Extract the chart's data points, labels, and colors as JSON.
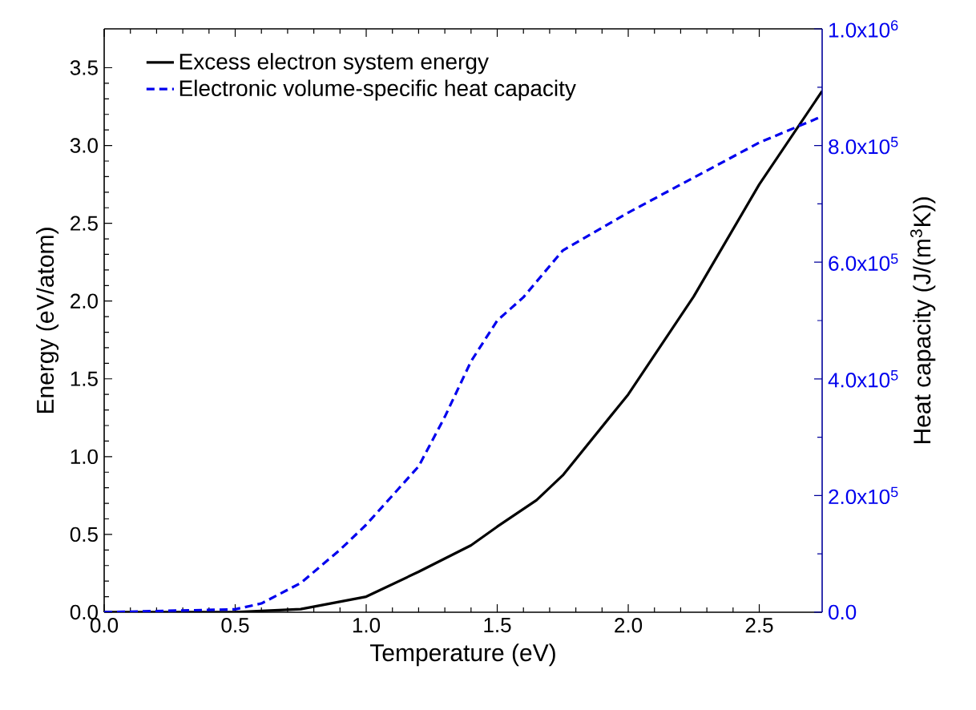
{
  "chart_data": {
    "type": "line",
    "xlabel": "Temperature (eV)",
    "ylabel": "Energy (eV/atom)",
    "y2label": "Heat capacity (J/(m$^{3}$K))",
    "xlim": [
      0,
      2.74
    ],
    "ylim": [
      0,
      3.75
    ],
    "y2lim": [
      0,
      1000000
    ],
    "xticks": [
      {
        "value": 0,
        "label": "0.0"
      },
      {
        "value": 0.5,
        "label": "0.5"
      },
      {
        "value": 1,
        "label": "1.0"
      },
      {
        "value": 1.5,
        "label": "1.5"
      },
      {
        "value": 2,
        "label": "2.0"
      },
      {
        "value": 2.5,
        "label": "2.5"
      }
    ],
    "yticks": [
      {
        "value": 0,
        "label": "0.0"
      },
      {
        "value": 0.5,
        "label": "0.5"
      },
      {
        "value": 1,
        "label": "1.0"
      },
      {
        "value": 1.5,
        "label": "1.5"
      },
      {
        "value": 2,
        "label": "2.0"
      },
      {
        "value": 2.5,
        "label": "2.5"
      },
      {
        "value": 3,
        "label": "3.0"
      },
      {
        "value": 3.5,
        "label": "3.5"
      }
    ],
    "y2ticks": [
      {
        "value": 0,
        "label": "0.0"
      },
      {
        "value": 200000,
        "label": "2.0x10$^{5}$"
      },
      {
        "value": 400000,
        "label": "4.0x10$^{5}$"
      },
      {
        "value": 600000,
        "label": "6.0x10$^{5}$"
      },
      {
        "value": 800000,
        "label": "8.0x10$^{5}$"
      },
      {
        "value": 1000000,
        "label": "1.0x10$^{6}$"
      }
    ],
    "legend": "top left",
    "marker": "none",
    "grid": false,
    "series": [
      {
        "name": "Excess electron system energy",
        "color": "#000000",
        "line_style": "solid",
        "x": [
          0,
          0.5,
          0.75,
          1.0,
          1.2,
          1.4,
          1.5,
          1.65,
          1.75,
          2.0,
          2.25,
          2.5,
          2.74
        ],
        "values": [
          0,
          0,
          0.02,
          0.1,
          0.26,
          0.43,
          0.55,
          0.72,
          0.88,
          1.4,
          2.03,
          2.75,
          3.35
        ]
      },
      {
        "name": "Electronic volume-specific heat capacity",
        "color": "#0000ee",
        "line_style": "dashed",
        "axis": "y2",
        "x": [
          0,
          0.5,
          0.6,
          0.75,
          0.9,
          1.0,
          1.1,
          1.2,
          1.3,
          1.4,
          1.5,
          1.6,
          1.75,
          2.0,
          2.25,
          2.5,
          2.74
        ],
        "values": [
          0,
          5000,
          15000,
          50000,
          107000,
          150000,
          200000,
          250000,
          335000,
          430000,
          500000,
          540000,
          620000,
          685000,
          745000,
          805000,
          850000
        ]
      }
    ]
  }
}
